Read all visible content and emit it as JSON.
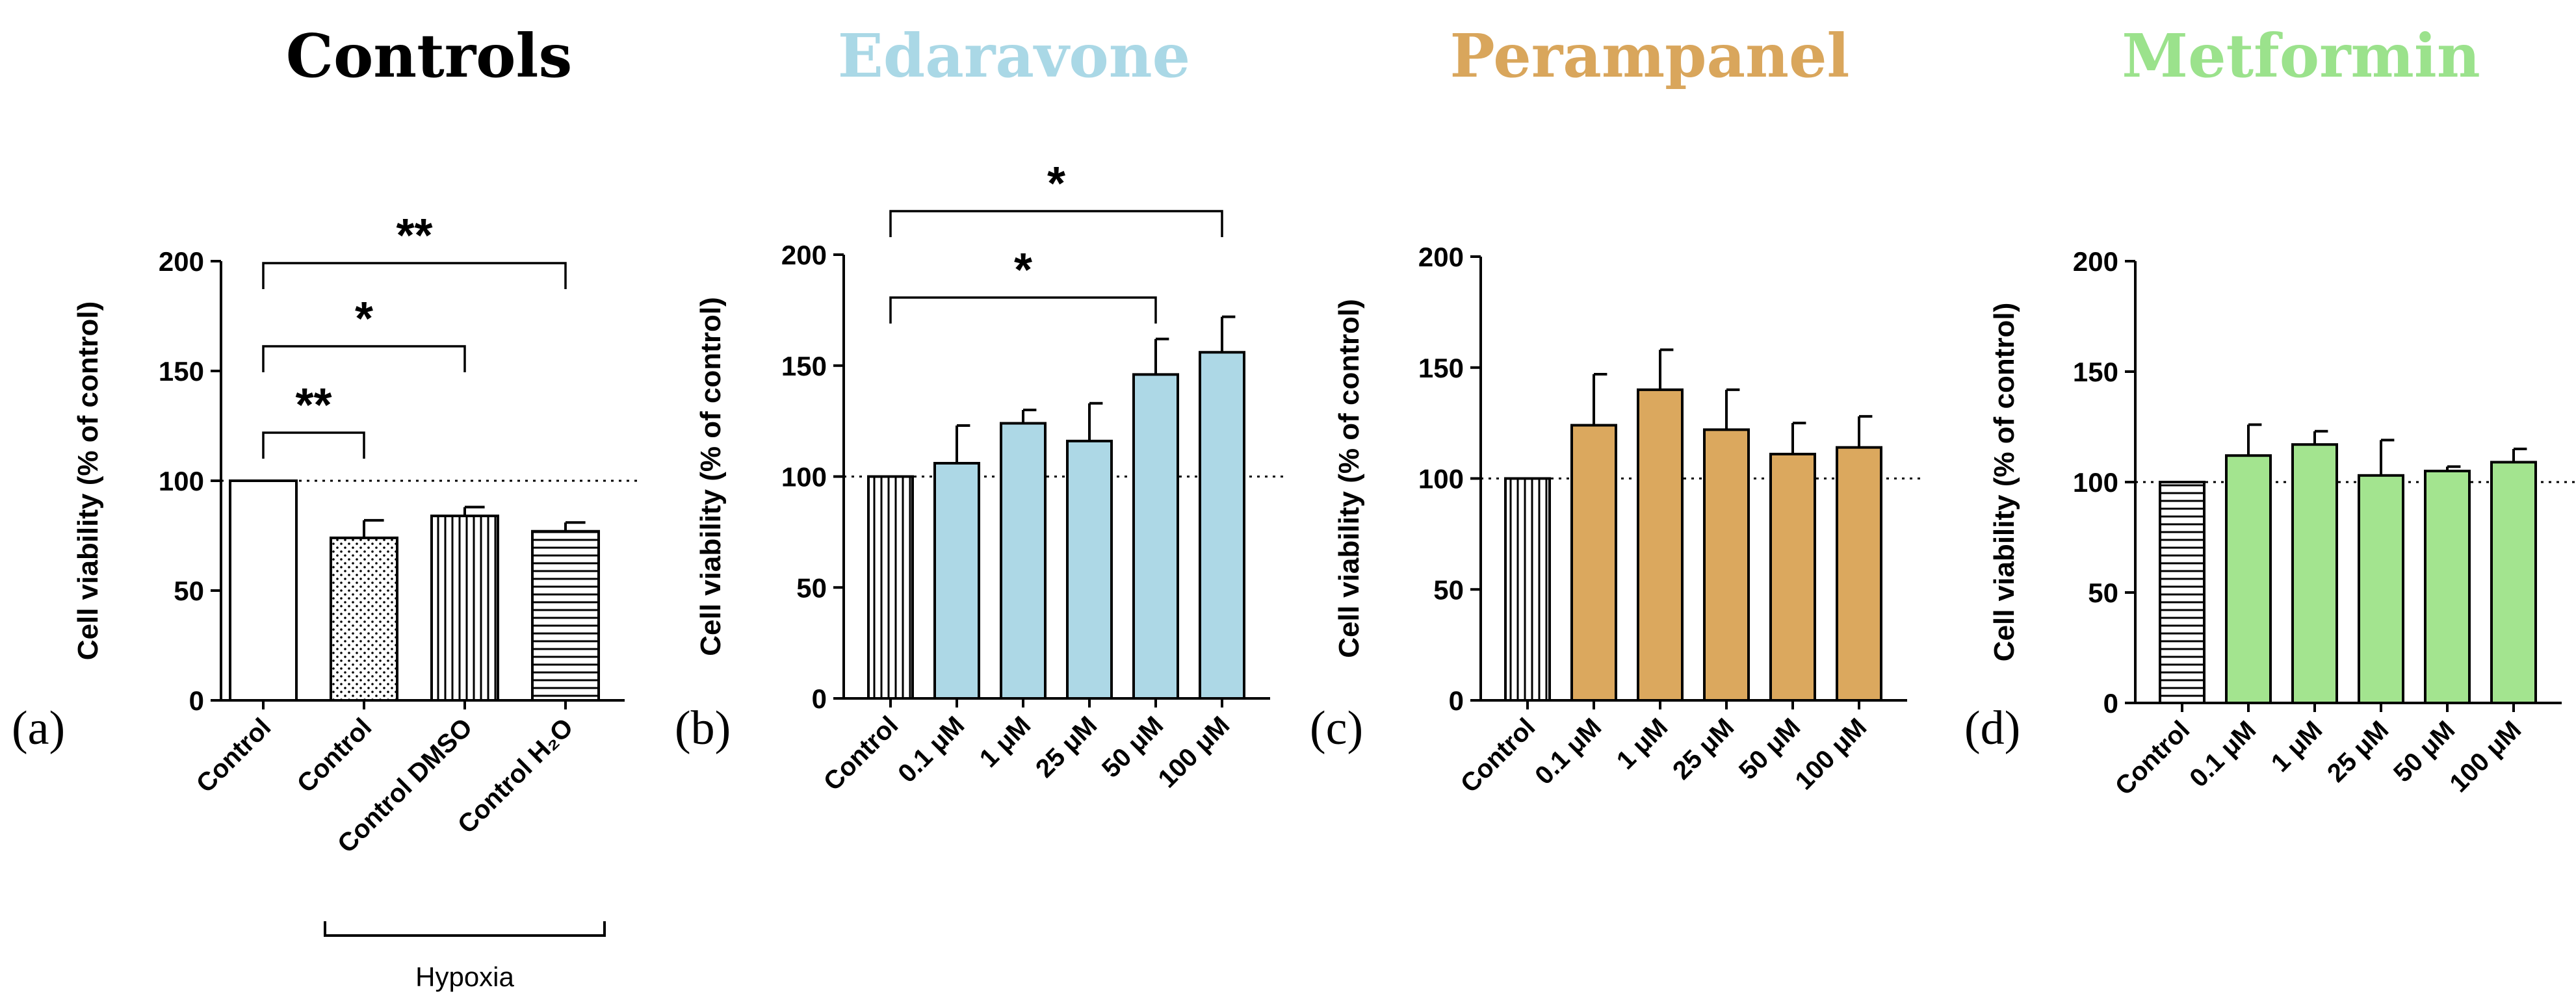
{
  "chart_data": [
    {
      "type": "bar",
      "panel": "(a)",
      "title": "Controls",
      "title_color": "#000000",
      "bar_color": "#ffffff",
      "ylabel": "Cell viability (% of control)",
      "ylim": [
        0,
        200
      ],
      "yticks": [
        0,
        50,
        100,
        150,
        200
      ],
      "reference_line": 100,
      "categories": [
        "Control",
        "Control",
        "Control DMSO",
        "Control H₂O"
      ],
      "patterns": [
        "none",
        "dots",
        "vertical",
        "horizontal"
      ],
      "values": [
        100,
        74,
        84,
        77
      ],
      "errors": [
        0,
        8,
        4,
        4
      ],
      "group": {
        "label": "Hypoxia",
        "categories": [
          "Control",
          "Control DMSO",
          "Control H₂O"
        ]
      },
      "significance": [
        {
          "from": "Control",
          "to": "Control ",
          "label": "**"
        },
        {
          "from": "Control",
          "to": "Control DMSO",
          "label": "*"
        },
        {
          "from": "Control",
          "to": "Control H₂O",
          "label": "**"
        }
      ]
    },
    {
      "type": "bar",
      "panel": "(b)",
      "title": "Edaravone",
      "title_color": "#aad8e6",
      "bar_color": "#add8e6",
      "ylabel": "Cell viability (% of control)",
      "ylim": [
        0,
        200
      ],
      "yticks": [
        0,
        50,
        100,
        150,
        200
      ],
      "reference_line": 100,
      "categories": [
        "Control",
        "0.1 μM",
        "1 μM",
        "25 μM",
        "50 μM",
        "100 μM"
      ],
      "patterns": [
        "vertical",
        "none",
        "none",
        "none",
        "none",
        "none"
      ],
      "values": [
        100,
        106,
        124,
        116,
        146,
        156
      ],
      "errors": [
        0,
        17,
        6,
        17,
        16,
        16
      ],
      "significance": [
        {
          "from": "Control",
          "to": "50 μM",
          "label": "*"
        },
        {
          "from": "Control",
          "to": "100 μM",
          "label": "*"
        }
      ]
    },
    {
      "type": "bar",
      "panel": "(c)",
      "title": "Perampanel",
      "title_color": "#d9a65c",
      "bar_color": "#dba85e",
      "ylabel": "Cell viability (% of control)",
      "ylim": [
        0,
        200
      ],
      "yticks": [
        0,
        50,
        100,
        150,
        200
      ],
      "reference_line": 100,
      "categories": [
        "Control",
        "0.1 μM",
        "1 μM",
        "25 μM",
        "50 μM",
        "100 μM"
      ],
      "patterns": [
        "vertical",
        "none",
        "none",
        "none",
        "none",
        "none"
      ],
      "values": [
        100,
        124,
        140,
        122,
        111,
        114
      ],
      "errors": [
        0,
        23,
        18,
        18,
        14,
        14
      ],
      "significance": []
    },
    {
      "type": "bar",
      "panel": "(d)",
      "title": "Metformin",
      "title_color": "#9be28c",
      "bar_color": "#a3e48f",
      "ylabel": "Cell viability (% of control)",
      "ylim": [
        0,
        200
      ],
      "yticks": [
        0,
        50,
        100,
        150,
        200
      ],
      "reference_line": 100,
      "categories": [
        "Control",
        "0.1 μM",
        "1 μM",
        "25 μM",
        "50 μM",
        "100 μM"
      ],
      "patterns": [
        "horizontal",
        "none",
        "none",
        "none",
        "none",
        "none"
      ],
      "values": [
        100,
        112,
        117,
        103,
        105,
        109
      ],
      "errors": [
        0,
        14,
        6,
        16,
        2,
        6
      ],
      "significance": []
    }
  ]
}
